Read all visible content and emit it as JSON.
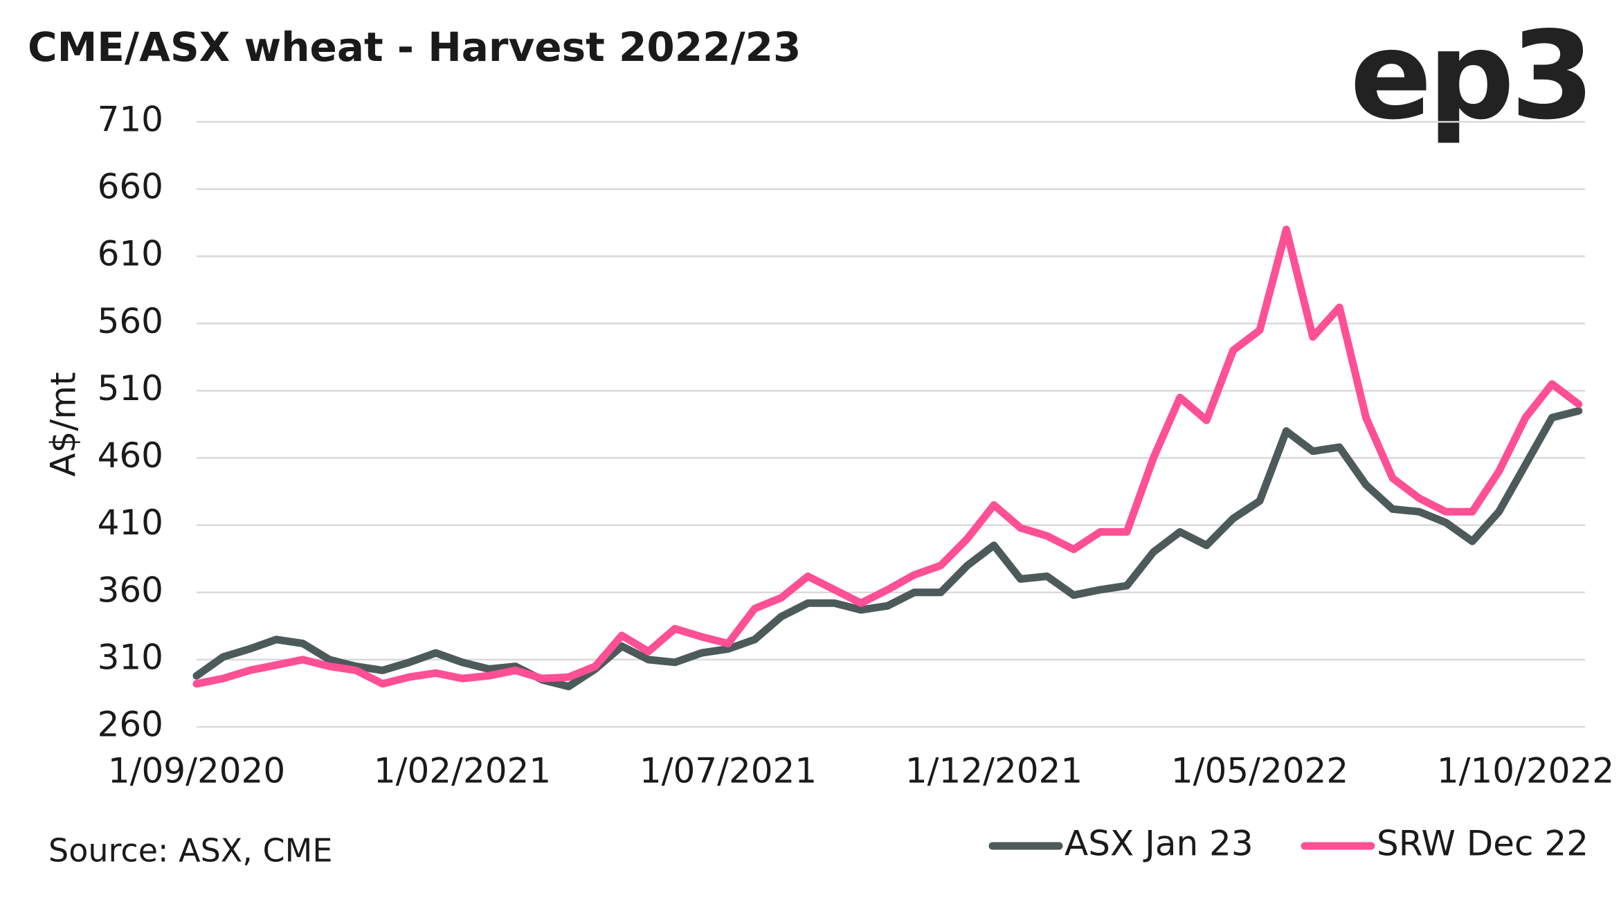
{
  "chart_data": {
    "type": "line",
    "title": "CME/ASX wheat - Harvest 2022/23",
    "logo": "ep3",
    "source": "Source: ASX, CME",
    "y_label": "A$/mt",
    "categories": [
      "1/09/2020",
      null,
      null,
      null,
      null,
      null,
      null,
      null,
      null,
      null,
      "1/02/2021",
      null,
      null,
      null,
      null,
      null,
      null,
      null,
      null,
      null,
      "1/07/2021",
      null,
      null,
      null,
      null,
      null,
      null,
      null,
      null,
      null,
      "1/12/2021",
      null,
      null,
      null,
      null,
      null,
      null,
      null,
      null,
      null,
      "1/05/2022",
      null,
      null,
      null,
      null,
      null,
      null,
      null,
      null,
      null,
      "1/10/2022",
      null,
      null
    ],
    "series": [
      {
        "name": "ASX Jan 23",
        "color": "#4d5a5a",
        "values": [
          298,
          312,
          318,
          325,
          322,
          310,
          305,
          302,
          308,
          315,
          308,
          303,
          305,
          295,
          290,
          303,
          320,
          310,
          308,
          315,
          318,
          325,
          342,
          352,
          352,
          347,
          350,
          360,
          360,
          380,
          395,
          370,
          372,
          358,
          362,
          365,
          390,
          405,
          395,
          415,
          428,
          480,
          465,
          468,
          440,
          422,
          420,
          412,
          398,
          420,
          455,
          490,
          495
        ]
      },
      {
        "name": "SRW Dec 22",
        "color": "#ff4f95",
        "values": [
          292,
          296,
          302,
          306,
          310,
          305,
          302,
          292,
          297,
          300,
          296,
          298,
          302,
          296,
          297,
          305,
          328,
          316,
          333,
          327,
          322,
          348,
          356,
          372,
          362,
          352,
          362,
          373,
          380,
          400,
          425,
          408,
          402,
          392,
          405,
          405,
          460,
          505,
          488,
          540,
          555,
          630,
          550,
          572,
          490,
          445,
          430,
          420,
          420,
          450,
          490,
          515,
          500
        ]
      }
    ],
    "ylim": [
      260,
      710
    ],
    "yticks": [
      260,
      310,
      360,
      410,
      460,
      510,
      560,
      610,
      660,
      710
    ],
    "grid": true,
    "legend": "bottom-right"
  }
}
